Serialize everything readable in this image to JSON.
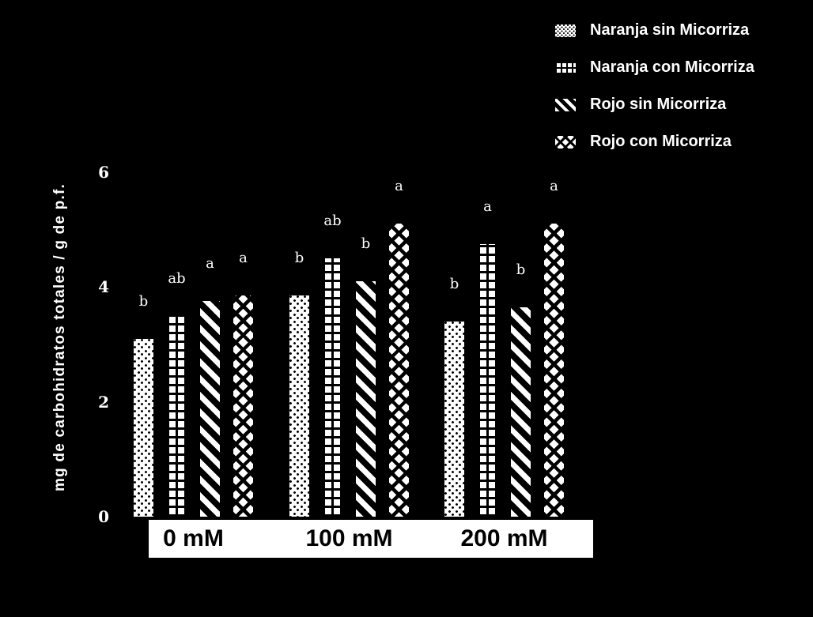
{
  "chart_data": {
    "type": "bar",
    "title": "",
    "categories": [
      "0 mM",
      "100 mM",
      "200 mM"
    ],
    "series": [
      {
        "name": "Naranja sin Micorriza",
        "pattern": "dots",
        "values": [
          3.1,
          3.85,
          3.4
        ],
        "sig_letters": [
          "b",
          "b",
          "b"
        ]
      },
      {
        "name": "Naranja con Micorriza",
        "pattern": "grid",
        "values": [
          3.5,
          4.5,
          4.75
        ],
        "sig_letters": [
          "ab",
          "ab",
          "a"
        ]
      },
      {
        "name": "Rojo sin Micorriza",
        "pattern": "diag",
        "values": [
          3.75,
          4.1,
          3.65
        ],
        "sig_letters": [
          "a",
          "b",
          "b"
        ]
      },
      {
        "name": "Rojo con Micorriza",
        "pattern": "cross",
        "values": [
          3.85,
          5.1,
          5.1
        ],
        "sig_letters": [
          "a",
          "a",
          "a"
        ]
      }
    ],
    "ylabel": "mg de carbohidratos totales / g de p.f.",
    "yticks": [
      0,
      2,
      4,
      6
    ],
    "ylim": [
      0,
      6
    ],
    "grid": false,
    "legend_position": "top-right",
    "colors": {
      "background": "#000000",
      "bar_fill": "#ffffff",
      "bar_pattern": "#000000",
      "axis_text": "#ffffff",
      "category_box_bg": "#ffffff",
      "category_text": "#000000"
    }
  }
}
